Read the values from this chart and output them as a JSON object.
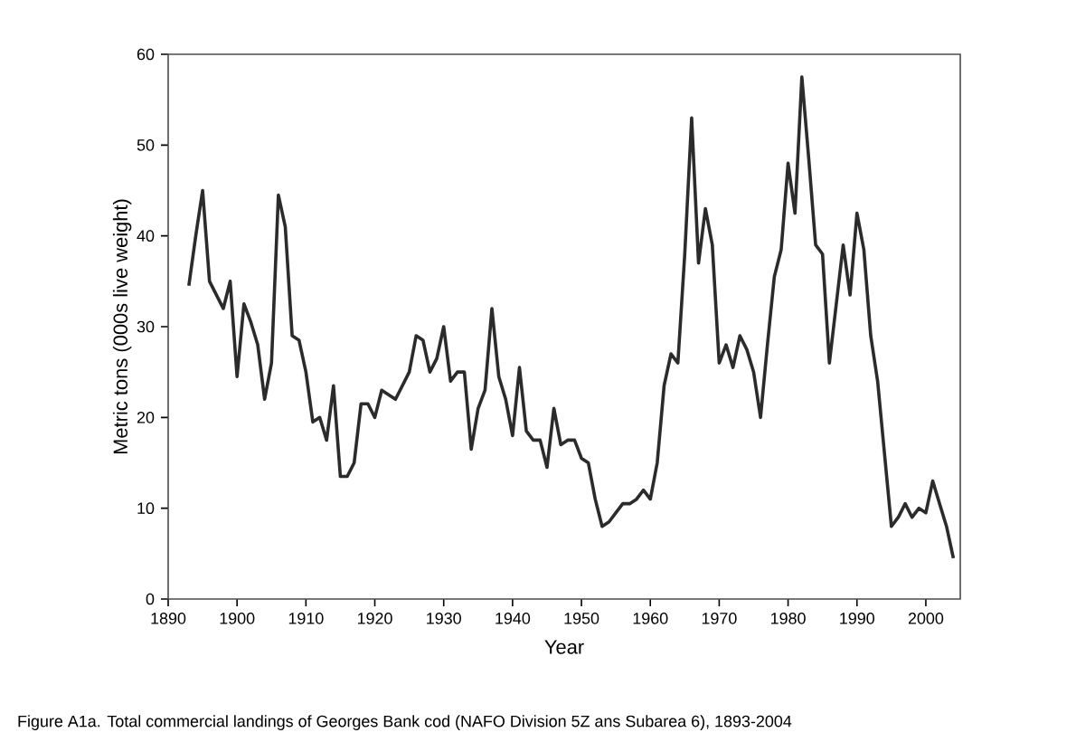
{
  "chart_data": {
    "type": "line",
    "xlabel": "Year",
    "ylabel": "Metric tons (000s live weight)",
    "annotations": [
      "Figure A1a.  Total commercial landings of Georges Bank cod (NAFO Division 5Z ans Subarea 6), 1893-2004"
    ],
    "x": [
      1893,
      1894,
      1895,
      1896,
      1897,
      1898,
      1899,
      1900,
      1901,
      1902,
      1903,
      1904,
      1905,
      1906,
      1907,
      1908,
      1909,
      1910,
      1911,
      1912,
      1913,
      1914,
      1915,
      1916,
      1917,
      1918,
      1919,
      1920,
      1921,
      1922,
      1923,
      1924,
      1925,
      1926,
      1927,
      1928,
      1929,
      1930,
      1931,
      1932,
      1933,
      1934,
      1935,
      1936,
      1937,
      1938,
      1939,
      1940,
      1941,
      1942,
      1943,
      1944,
      1945,
      1946,
      1947,
      1948,
      1949,
      1950,
      1951,
      1952,
      1953,
      1954,
      1955,
      1956,
      1957,
      1958,
      1959,
      1960,
      1961,
      1962,
      1963,
      1964,
      1965,
      1966,
      1967,
      1968,
      1969,
      1970,
      1971,
      1972,
      1973,
      1974,
      1975,
      1976,
      1977,
      1978,
      1979,
      1980,
      1981,
      1982,
      1983,
      1984,
      1985,
      1986,
      1987,
      1988,
      1989,
      1990,
      1991,
      1992,
      1993,
      1994,
      1995,
      1996,
      1997,
      1998,
      1999,
      2000,
      2001,
      2002,
      2003,
      2004
    ],
    "series": [
      {
        "color": "#2b2b2b",
        "values": [
          34.5,
          40,
          45,
          35,
          33.5,
          32,
          35,
          24.5,
          32.5,
          30.5,
          28,
          22,
          26,
          44.5,
          41,
          29,
          28.5,
          25,
          19.5,
          20,
          17.5,
          23.5,
          13.5,
          13.5,
          15,
          21.5,
          21.5,
          20,
          23,
          22.5,
          22,
          23.5,
          25,
          29,
          28.5,
          25,
          26.5,
          30,
          24,
          25,
          25,
          16.5,
          21,
          23,
          32,
          24.5,
          22,
          18,
          25.5,
          18.5,
          17.5,
          17.5,
          14.5,
          21,
          17,
          17.5,
          17.5,
          15.5,
          15,
          11,
          8,
          8.5,
          9.5,
          10.5,
          10.5,
          11,
          12,
          11,
          15,
          23.5,
          27,
          26,
          38,
          53,
          37,
          43,
          39,
          26,
          28,
          25.5,
          29,
          27.5,
          25,
          20,
          28,
          35.5,
          38.5,
          48,
          42.5,
          57.5,
          48.5,
          39,
          38,
          26,
          32.5,
          39,
          33.5,
          42.5,
          38.5,
          29,
          24,
          16,
          8,
          9,
          10.5,
          9,
          10,
          9.5,
          13,
          10.5,
          8,
          4.5
        ]
      }
    ],
    "xlim": [
      1890,
      2005
    ],
    "ylim": [
      0,
      60
    ],
    "xticks": [
      1890,
      1900,
      1910,
      1920,
      1930,
      1940,
      1950,
      1960,
      1970,
      1980,
      1990,
      2000
    ],
    "yticks": [
      0,
      10,
      20,
      30,
      40,
      50,
      60
    ],
    "grid": false,
    "marker": "none",
    "line_style": "solid"
  }
}
